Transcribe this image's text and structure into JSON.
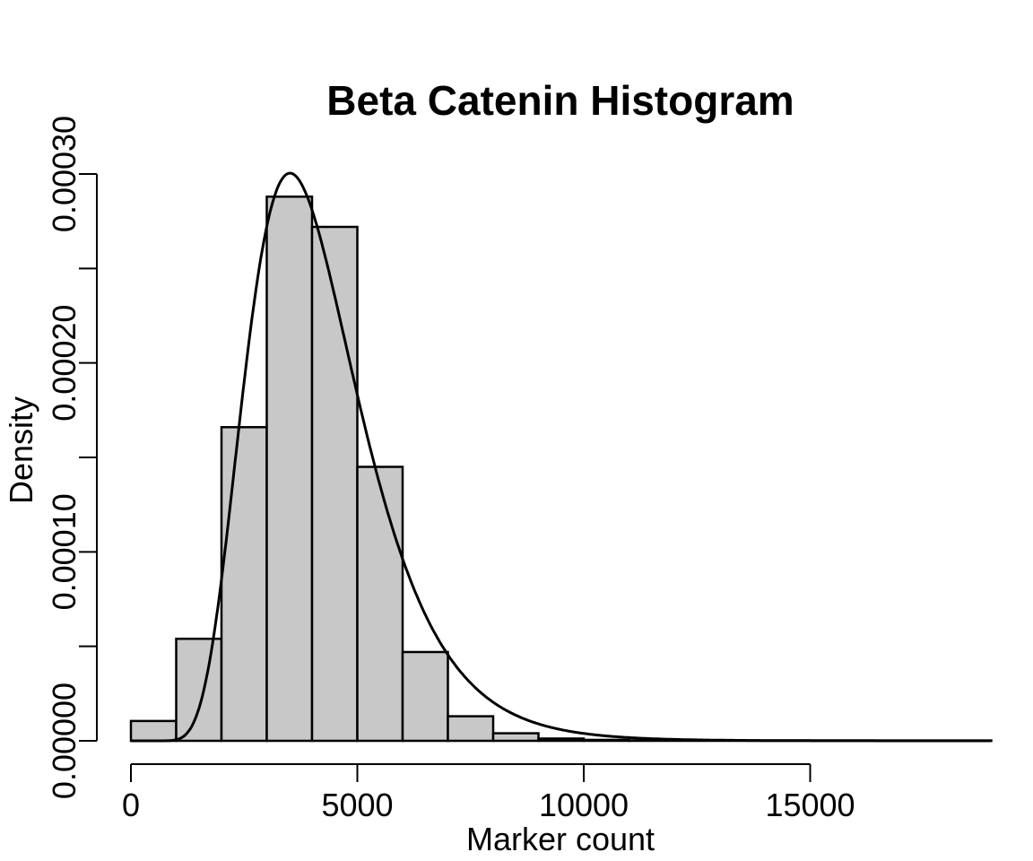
{
  "chart_data": {
    "type": "bar",
    "title": "Beta Catenin Histogram",
    "xlabel": "Marker count",
    "ylabel": "Density",
    "xlim": [
      0,
      19000
    ],
    "ylim": [
      0,
      0.0003
    ],
    "x_ticks": [
      0,
      5000,
      10000,
      15000
    ],
    "x_tick_labels": [
      "0",
      "5000",
      "10000",
      "15000"
    ],
    "y_ticks": [
      0,
      5e-05,
      0.0001,
      0.00015,
      0.0002,
      0.00025,
      0.0003
    ],
    "y_tick_labels": [
      "0.00000",
      "0.00010",
      "0.00020",
      "0.00030"
    ],
    "grid": false,
    "bar_fill": "#c8c8c8",
    "bar_stroke": "#000000",
    "bins": [
      {
        "start": 0,
        "end": 1000,
        "density": 1.05e-05
      },
      {
        "start": 1000,
        "end": 2000,
        "density": 5.4e-05
      },
      {
        "start": 2000,
        "end": 3000,
        "density": 0.000166
      },
      {
        "start": 3000,
        "end": 4000,
        "density": 0.000288
      },
      {
        "start": 4000,
        "end": 5000,
        "density": 0.000272
      },
      {
        "start": 5000,
        "end": 6000,
        "density": 0.000145
      },
      {
        "start": 6000,
        "end": 7000,
        "density": 4.7e-05
      },
      {
        "start": 7000,
        "end": 8000,
        "density": 1.3e-05
      },
      {
        "start": 8000,
        "end": 9000,
        "density": 4e-06
      },
      {
        "start": 9000,
        "end": 10000,
        "density": 1.2e-06
      },
      {
        "start": 10000,
        "end": 11000,
        "density": 5e-07
      },
      {
        "start": 11000,
        "end": 19000,
        "density": 2e-07
      }
    ],
    "density_curve": {
      "distribution": "lognormal",
      "meanlog": 8.29,
      "sdlog": 0.355,
      "x_range": [
        0,
        19000
      ]
    }
  }
}
